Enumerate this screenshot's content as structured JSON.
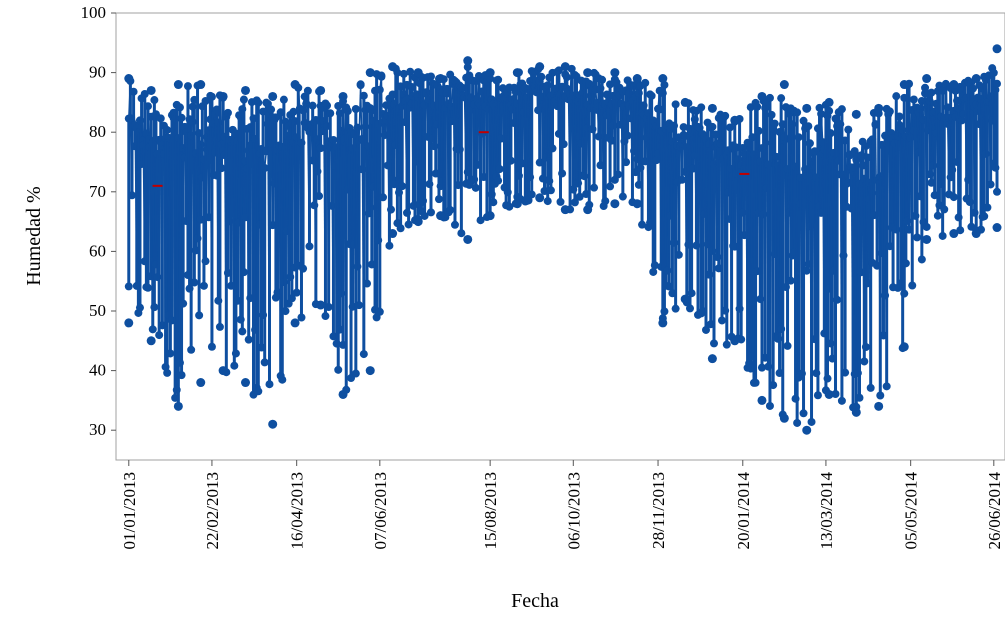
{
  "chart_data": {
    "type": "line",
    "title": "",
    "xlabel": "Fecha",
    "ylabel": "Humedad %",
    "ylim": [
      25,
      100
    ],
    "yticks": [
      30,
      40,
      50,
      60,
      70,
      80,
      90,
      100
    ],
    "xlim": [
      "2012-12-24",
      "2014-07-03"
    ],
    "xticks": [
      "01/01/2013",
      "22/02/2013",
      "16/04/2013",
      "07/06/2013",
      "15/08/2013",
      "06/10/2013",
      "28/11/2013",
      "20/01/2014",
      "13/03/2014",
      "05/05/2014",
      "26/06/2014"
    ],
    "grid": false,
    "legend": "none",
    "series": [
      {
        "color": "#0e4fa0",
        "marker": "circle",
        "daily_range": {
          "dates": [
            "2013-01-01",
            "2013-01-15",
            "2013-02-01",
            "2013-02-15",
            "2013-03-01",
            "2013-03-15",
            "2013-04-01",
            "2013-04-15",
            "2013-05-01",
            "2013-05-15",
            "2013-06-01",
            "2013-06-15",
            "2013-07-01",
            "2013-07-15",
            "2013-08-01",
            "2013-08-15",
            "2013-09-01",
            "2013-09-15",
            "2013-10-01",
            "2013-10-15",
            "2013-11-01",
            "2013-11-15",
            "2013-12-01",
            "2013-12-15",
            "2014-01-01",
            "2014-01-15",
            "2014-02-01",
            "2014-02-15",
            "2014-03-01",
            "2014-03-15",
            "2014-04-01",
            "2014-04-15",
            "2014-05-01",
            "2014-05-15",
            "2014-06-01",
            "2014-06-15",
            "2014-06-28"
          ],
          "min": [
            48,
            45,
            34,
            38,
            40,
            38,
            31,
            48,
            51,
            36,
            40,
            63,
            65,
            66,
            62,
            66,
            68,
            69,
            67,
            67,
            68,
            68,
            48,
            52,
            42,
            45,
            35,
            32,
            30,
            36,
            33,
            34,
            44,
            62,
            63,
            63,
            64
          ],
          "max": [
            89,
            87,
            88,
            88,
            86,
            87,
            86,
            88,
            87,
            86,
            90,
            91,
            90,
            89,
            92,
            90,
            90,
            91,
            91,
            90,
            90,
            89,
            89,
            85,
            84,
            82,
            86,
            88,
            84,
            85,
            83,
            84,
            88,
            89,
            88,
            89,
            94
          ]
        }
      }
    ],
    "markers": [
      {
        "date": "2013-01-19",
        "value": 71,
        "color": "#c00000"
      },
      {
        "date": "2013-08-11",
        "value": 80,
        "color": "#c00000"
      },
      {
        "date": "2014-01-21",
        "value": 73,
        "color": "#c00000"
      }
    ]
  }
}
